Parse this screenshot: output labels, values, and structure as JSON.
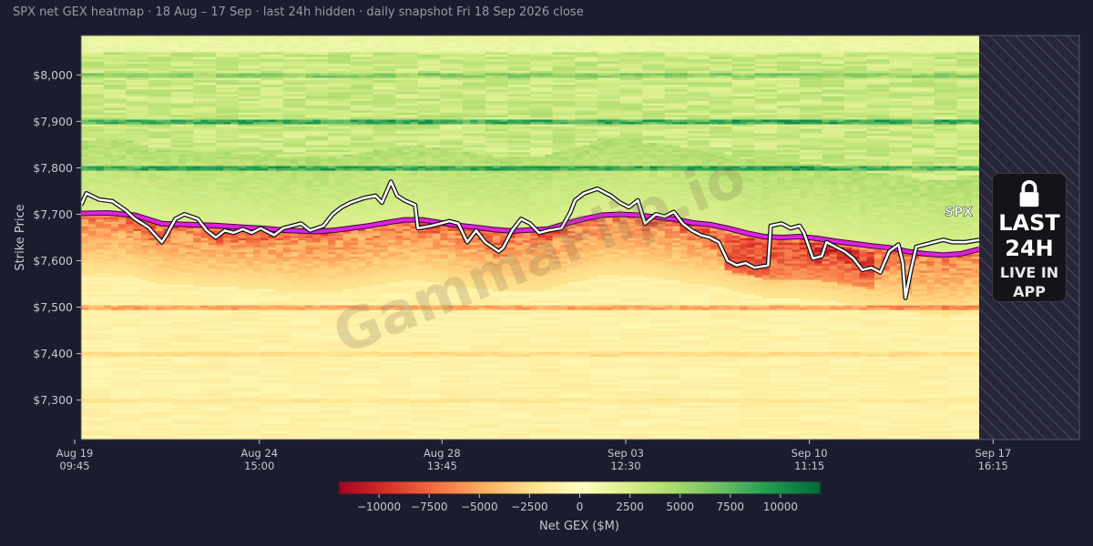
{
  "title": "SPX net GEX heatmap · 18 Aug – 17 Sep · last 24h hidden · daily snapshot Fri 18 Sep 2026 close",
  "watermark": "GammaFlip.io",
  "lock_panel": {
    "icon": "lock-icon",
    "line1": "LAST",
    "line2": "24H",
    "line3": "LIVE IN",
    "line4": "APP"
  },
  "colors": {
    "background": "#1b1c2e",
    "spx_line": "#ffffff",
    "flip_line": "#e020e0",
    "negative": "#a50026",
    "neutral": "#ffffbf",
    "positive": "#006837"
  },
  "chart_data": {
    "type": "heatmap",
    "ylabel": "Strike Price",
    "yticks": [
      7300,
      7400,
      7500,
      7600,
      7700,
      7800,
      7900,
      8000
    ],
    "ytick_labels": [
      "$7,300",
      "$7,400",
      "$7,500",
      "$7,600",
      "$7,700",
      "$7,800",
      "$7,900",
      "$8,000"
    ],
    "ylim": [
      7215,
      8085
    ],
    "xticks": [
      {
        "line1": "Aug 19",
        "line2": "09:45",
        "pos": 0.0
      },
      {
        "line1": "Aug 24",
        "line2": "15:00",
        "pos": 0.185
      },
      {
        "line1": "Aug 28",
        "line2": "13:45",
        "pos": 0.368
      },
      {
        "line1": "Sep 03",
        "line2": "12:30",
        "pos": 0.552
      },
      {
        "line1": "Sep 10",
        "line2": "11:15",
        "pos": 0.736
      },
      {
        "line1": "Sep 17",
        "line2": "16:15",
        "pos": 0.92
      }
    ],
    "visible_fraction": 0.912,
    "hidden_region": "last 24h",
    "colorbar": {
      "label": "Net GEX ($M)",
      "range": [
        -12000,
        12000
      ],
      "ticks": [
        -10000,
        -7500,
        -5000,
        -2500,
        0,
        2500,
        5000,
        7500,
        10000
      ],
      "tick_labels": [
        "−10000",
        "−7500",
        "−5000",
        "−2500",
        "0",
        "2500",
        "5000",
        "7500",
        "10000"
      ]
    },
    "series": [
      {
        "name": "SPX",
        "points": [
          [
            0,
            7720
          ],
          [
            0.006,
            7745
          ],
          [
            0.02,
            7732
          ],
          [
            0.035,
            7728
          ],
          [
            0.05,
            7708
          ],
          [
            0.06,
            7690
          ],
          [
            0.075,
            7672
          ],
          [
            0.09,
            7640
          ],
          [
            0.095,
            7655
          ],
          [
            0.105,
            7690
          ],
          [
            0.115,
            7700
          ],
          [
            0.13,
            7690
          ],
          [
            0.14,
            7665
          ],
          [
            0.15,
            7650
          ],
          [
            0.16,
            7665
          ],
          [
            0.17,
            7660
          ],
          [
            0.18,
            7668
          ],
          [
            0.19,
            7660
          ],
          [
            0.2,
            7670
          ],
          [
            0.215,
            7655
          ],
          [
            0.225,
            7670
          ],
          [
            0.245,
            7680
          ],
          [
            0.255,
            7665
          ],
          [
            0.27,
            7675
          ],
          [
            0.28,
            7700
          ],
          [
            0.29,
            7715
          ],
          [
            0.3,
            7725
          ],
          [
            0.315,
            7735
          ],
          [
            0.328,
            7740
          ],
          [
            0.335,
            7725
          ],
          [
            0.345,
            7770
          ],
          [
            0.352,
            7740
          ],
          [
            0.36,
            7730
          ],
          [
            0.372,
            7720
          ],
          [
            0.375,
            7670
          ],
          [
            0.39,
            7675
          ],
          [
            0.4,
            7680
          ],
          [
            0.41,
            7685
          ],
          [
            0.42,
            7680
          ],
          [
            0.43,
            7640
          ],
          [
            0.44,
            7665
          ],
          [
            0.45,
            7640
          ],
          [
            0.465,
            7620
          ],
          [
            0.47,
            7628
          ],
          [
            0.48,
            7665
          ],
          [
            0.49,
            7690
          ],
          [
            0.5,
            7680
          ],
          [
            0.51,
            7660
          ],
          [
            0.52,
            7665
          ],
          [
            0.535,
            7670
          ],
          [
            0.545,
            7705
          ],
          [
            0.55,
            7730
          ],
          [
            0.56,
            7745
          ],
          [
            0.575,
            7755
          ],
          [
            0.59,
            7740
          ],
          [
            0.6,
            7725
          ],
          [
            0.61,
            7715
          ],
          [
            0.62,
            7730
          ],
          [
            0.628,
            7680
          ],
          [
            0.64,
            7700
          ],
          [
            0.65,
            7695
          ],
          [
            0.66,
            7705
          ],
          [
            0.67,
            7680
          ],
          [
            0.68,
            7665
          ],
          [
            0.69,
            7655
          ],
          [
            0.7,
            7650
          ],
          [
            0.71,
            7640
          ],
          [
            0.72,
            7600
          ],
          [
            0.73,
            7590
          ],
          [
            0.74,
            7595
          ],
          [
            0.75,
            7585
          ],
          [
            0.765,
            7590
          ],
          [
            0.768,
            7675
          ],
          [
            0.78,
            7680
          ],
          [
            0.79,
            7670
          ],
          [
            0.8,
            7675
          ],
          [
            0.805,
            7660
          ],
          [
            0.815,
            7605
          ],
          [
            0.825,
            7610
          ],
          [
            0.83,
            7640
          ],
          [
            0.84,
            7630
          ],
          [
            0.85,
            7620
          ],
          [
            0.86,
            7605
          ],
          [
            0.87,
            7580
          ],
          [
            0.88,
            7585
          ],
          [
            0.89,
            7575
          ],
          [
            0.9,
            7620
          ],
          [
            0.91,
            7635
          ],
          [
            0.915,
            7595
          ],
          [
            0.918,
            7520
          ],
          [
            0.924,
            7580
          ],
          [
            0.93,
            7630
          ],
          [
            0.94,
            7635
          ],
          [
            0.95,
            7640
          ],
          [
            0.96,
            7645
          ],
          [
            0.97,
            7640
          ],
          [
            0.985,
            7640
          ],
          [
            1.0,
            7645
          ]
        ]
      },
      {
        "name": "Gamma flip",
        "points": [
          [
            0,
            7702
          ],
          [
            0.03,
            7703
          ],
          [
            0.06,
            7698
          ],
          [
            0.09,
            7680
          ],
          [
            0.12,
            7678
          ],
          [
            0.15,
            7676
          ],
          [
            0.18,
            7672
          ],
          [
            0.2,
            7670
          ],
          [
            0.23,
            7665
          ],
          [
            0.26,
            7663
          ],
          [
            0.28,
            7665
          ],
          [
            0.3,
            7670
          ],
          [
            0.32,
            7675
          ],
          [
            0.34,
            7682
          ],
          [
            0.36,
            7688
          ],
          [
            0.38,
            7688
          ],
          [
            0.4,
            7682
          ],
          [
            0.42,
            7676
          ],
          [
            0.44,
            7672
          ],
          [
            0.46,
            7667
          ],
          [
            0.48,
            7664
          ],
          [
            0.5,
            7666
          ],
          [
            0.52,
            7668
          ],
          [
            0.54,
            7680
          ],
          [
            0.56,
            7690
          ],
          [
            0.58,
            7698
          ],
          [
            0.6,
            7700
          ],
          [
            0.62,
            7698
          ],
          [
            0.64,
            7694
          ],
          [
            0.66,
            7690
          ],
          [
            0.68,
            7682
          ],
          [
            0.7,
            7678
          ],
          [
            0.72,
            7670
          ],
          [
            0.74,
            7660
          ],
          [
            0.76,
            7652
          ],
          [
            0.78,
            7650
          ],
          [
            0.8,
            7652
          ],
          [
            0.82,
            7648
          ],
          [
            0.84,
            7642
          ],
          [
            0.86,
            7637
          ],
          [
            0.88,
            7632
          ],
          [
            0.9,
            7628
          ],
          [
            0.92,
            7620
          ],
          [
            0.94,
            7615
          ],
          [
            0.96,
            7612
          ],
          [
            0.98,
            7615
          ],
          [
            1.0,
            7625
          ]
        ]
      }
    ],
    "line_label": "SPX",
    "bands": [
      {
        "strike": 8000,
        "value": 4500
      },
      {
        "strike": 7900,
        "value": 9500
      },
      {
        "strike": 7800,
        "value": 9000
      },
      {
        "strike": 7500,
        "value": -7000
      },
      {
        "strike": 7400,
        "value": -2500
      },
      {
        "strike": 7300,
        "value": -1500
      }
    ]
  }
}
